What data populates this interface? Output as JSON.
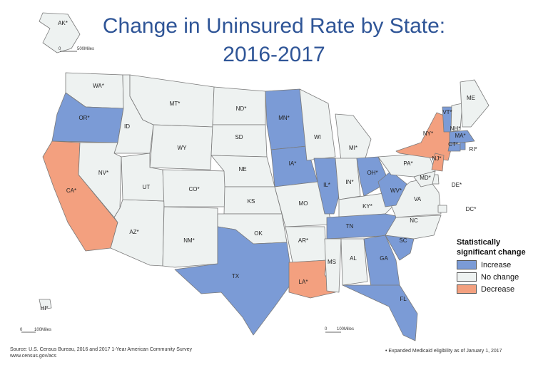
{
  "title": {
    "line1": "Change in Uninsured Rate by State:",
    "line2": "2016-2017"
  },
  "colors": {
    "increase": "#7b9bd6",
    "no_change": "#eef2f1",
    "decrease": "#f3a07f",
    "border": "#7a7a7a",
    "title": "#2f5597"
  },
  "legend": {
    "title_line1": "Statistically",
    "title_line2": "significant change",
    "items": [
      {
        "label": "Increase",
        "category": "increase"
      },
      {
        "label": "No change",
        "category": "no_change"
      },
      {
        "label": "Decrease",
        "category": "decrease"
      }
    ]
  },
  "states": [
    {
      "abbr": "WA",
      "label": "WA*",
      "category": "no_change"
    },
    {
      "abbr": "OR",
      "label": "OR*",
      "category": "increase"
    },
    {
      "abbr": "CA",
      "label": "CA*",
      "category": "decrease"
    },
    {
      "abbr": "ID",
      "label": "ID",
      "category": "no_change"
    },
    {
      "abbr": "NV",
      "label": "NV*",
      "category": "no_change"
    },
    {
      "abbr": "AZ",
      "label": "AZ*",
      "category": "no_change"
    },
    {
      "abbr": "MT",
      "label": "MT*",
      "category": "no_change"
    },
    {
      "abbr": "WY",
      "label": "WY",
      "category": "no_change"
    },
    {
      "abbr": "UT",
      "label": "UT",
      "category": "no_change"
    },
    {
      "abbr": "CO",
      "label": "CO*",
      "category": "no_change"
    },
    {
      "abbr": "NM",
      "label": "NM*",
      "category": "no_change"
    },
    {
      "abbr": "ND",
      "label": "ND*",
      "category": "no_change"
    },
    {
      "abbr": "SD",
      "label": "SD",
      "category": "no_change"
    },
    {
      "abbr": "NE",
      "label": "NE",
      "category": "no_change"
    },
    {
      "abbr": "KS",
      "label": "KS",
      "category": "no_change"
    },
    {
      "abbr": "OK",
      "label": "OK",
      "category": "no_change"
    },
    {
      "abbr": "TX",
      "label": "TX",
      "category": "increase"
    },
    {
      "abbr": "MN",
      "label": "MN*",
      "category": "increase"
    },
    {
      "abbr": "IA",
      "label": "IA*",
      "category": "increase"
    },
    {
      "abbr": "MO",
      "label": "MO",
      "category": "no_change"
    },
    {
      "abbr": "AR",
      "label": "AR*",
      "category": "no_change"
    },
    {
      "abbr": "LA",
      "label": "LA*",
      "category": "decrease"
    },
    {
      "abbr": "WI",
      "label": "WI",
      "category": "no_change"
    },
    {
      "abbr": "IL",
      "label": "IL*",
      "category": "increase"
    },
    {
      "abbr": "MI",
      "label": "MI*",
      "category": "no_change"
    },
    {
      "abbr": "IN",
      "label": "IN*",
      "category": "no_change"
    },
    {
      "abbr": "OH",
      "label": "OH*",
      "category": "increase"
    },
    {
      "abbr": "KY",
      "label": "KY*",
      "category": "no_change"
    },
    {
      "abbr": "TN",
      "label": "TN",
      "category": "increase"
    },
    {
      "abbr": "MS",
      "label": "MS",
      "category": "no_change"
    },
    {
      "abbr": "AL",
      "label": "AL",
      "category": "no_change"
    },
    {
      "abbr": "GA",
      "label": "GA",
      "category": "increase"
    },
    {
      "abbr": "FL",
      "label": "FL",
      "category": "increase"
    },
    {
      "abbr": "SC",
      "label": "SC",
      "category": "increase"
    },
    {
      "abbr": "NC",
      "label": "NC",
      "category": "no_change"
    },
    {
      "abbr": "VA",
      "label": "VA",
      "category": "no_change"
    },
    {
      "abbr": "WV",
      "label": "WV*",
      "category": "increase"
    },
    {
      "abbr": "PA",
      "label": "PA*",
      "category": "no_change"
    },
    {
      "abbr": "NY",
      "label": "NY*",
      "category": "decrease"
    },
    {
      "abbr": "VT",
      "label": "VT*",
      "category": "increase"
    },
    {
      "abbr": "NH",
      "label": "NH*",
      "category": "no_change"
    },
    {
      "abbr": "ME",
      "label": "ME",
      "category": "no_change"
    },
    {
      "abbr": "MA",
      "label": "MA*",
      "category": "increase"
    },
    {
      "abbr": "CT",
      "label": "CT*",
      "category": "increase"
    },
    {
      "abbr": "RI",
      "label": "RI*",
      "category": "increase"
    },
    {
      "abbr": "NJ",
      "label": "NJ*",
      "category": "decrease"
    },
    {
      "abbr": "DE",
      "label": "DE*",
      "category": "no_change"
    },
    {
      "abbr": "MD",
      "label": "MD*",
      "category": "no_change"
    },
    {
      "abbr": "DC",
      "label": "DC*",
      "category": "no_change"
    },
    {
      "abbr": "AK",
      "label": "AK*",
      "category": "no_change"
    },
    {
      "abbr": "HI",
      "label": "HI*",
      "category": "no_change"
    }
  ],
  "scale_bars": {
    "alaska": {
      "zero": "0",
      "label": "500Miles"
    },
    "hawaii": {
      "zero": "0",
      "label": "100Miles"
    },
    "main": {
      "zero": "0",
      "label": "100Miles"
    }
  },
  "source": {
    "line1": "Source: U.S. Census Bureau, 2016 and 2017 1-Year American Community Survey",
    "line2": "www.census.gov/acs"
  },
  "footnote": "• Expanded Medicaid eligibility as of January 1, 2017"
}
